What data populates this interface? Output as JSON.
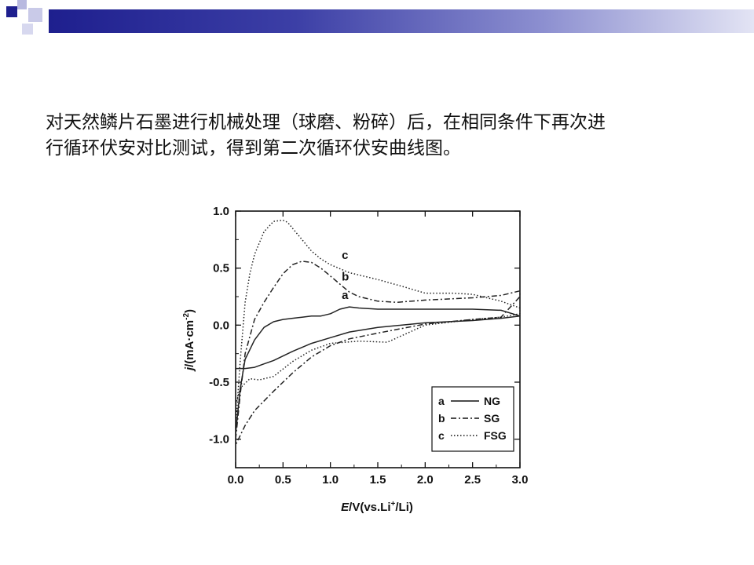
{
  "slide": {
    "text_line1": "对天然鳞片石墨进行机械处理（球磨、粉碎）后，在相同条件下再次进",
    "text_line2": "行循环伏安对比测试，得到第二次循环伏安曲线图。"
  },
  "chart_data": {
    "type": "line",
    "xlabel_prefix": "E",
    "xlabel_rest": "/V(vs.Li",
    "xlabel_sup": "+",
    "xlabel_end": "/Li)",
    "ylabel_prefix": "j",
    "ylabel_rest": "/(mA·cm",
    "ylabel_sup": "-2",
    "ylabel_end": ")",
    "xlim": [
      0.0,
      3.0
    ],
    "ylim": [
      -1.25,
      1.0
    ],
    "x_ticks": [
      "0.0",
      "0.5",
      "1.0",
      "1.5",
      "2.0",
      "2.5",
      "3.0"
    ],
    "y_ticks": [
      "1.0",
      "0.5",
      "0.0",
      "-0.5",
      "-1.0"
    ],
    "legend_position": "bottom-right",
    "series": [
      {
        "name": "NG",
        "key": "a",
        "style": "solid",
        "color": "#222222",
        "forward": [
          [
            0.0,
            -0.95
          ],
          [
            0.05,
            -0.55
          ],
          [
            0.1,
            -0.3
          ],
          [
            0.2,
            -0.13
          ],
          [
            0.3,
            -0.02
          ],
          [
            0.4,
            0.03
          ],
          [
            0.5,
            0.05
          ],
          [
            0.6,
            0.06
          ],
          [
            0.7,
            0.07
          ],
          [
            0.8,
            0.08
          ],
          [
            0.9,
            0.08
          ],
          [
            1.0,
            0.1
          ],
          [
            1.1,
            0.14
          ],
          [
            1.2,
            0.16
          ],
          [
            1.3,
            0.15
          ],
          [
            1.5,
            0.14
          ],
          [
            2.0,
            0.14
          ],
          [
            2.5,
            0.14
          ],
          [
            2.8,
            0.13
          ],
          [
            3.0,
            0.08
          ]
        ],
        "reverse": [
          [
            3.0,
            0.08
          ],
          [
            2.8,
            0.06
          ],
          [
            2.5,
            0.04
          ],
          [
            2.0,
            0.02
          ],
          [
            1.5,
            -0.02
          ],
          [
            1.2,
            -0.06
          ],
          [
            1.0,
            -0.11
          ],
          [
            0.8,
            -0.16
          ],
          [
            0.6,
            -0.23
          ],
          [
            0.4,
            -0.31
          ],
          [
            0.3,
            -0.34
          ],
          [
            0.2,
            -0.37
          ],
          [
            0.1,
            -0.38
          ],
          [
            0.0,
            -0.38
          ]
        ]
      },
      {
        "name": "SG",
        "key": "b",
        "style": "dashdot",
        "color": "#222222",
        "forward": [
          [
            0.0,
            -1.0
          ],
          [
            0.05,
            -0.6
          ],
          [
            0.1,
            -0.25
          ],
          [
            0.2,
            0.05
          ],
          [
            0.3,
            0.2
          ],
          [
            0.4,
            0.33
          ],
          [
            0.5,
            0.45
          ],
          [
            0.6,
            0.53
          ],
          [
            0.7,
            0.56
          ],
          [
            0.8,
            0.55
          ],
          [
            0.9,
            0.5
          ],
          [
            1.0,
            0.43
          ],
          [
            1.1,
            0.36
          ],
          [
            1.2,
            0.29
          ],
          [
            1.3,
            0.25
          ],
          [
            1.5,
            0.21
          ],
          [
            1.7,
            0.2
          ],
          [
            2.0,
            0.22
          ],
          [
            2.5,
            0.24
          ],
          [
            2.8,
            0.26
          ],
          [
            3.0,
            0.3
          ]
        ],
        "reverse": [
          [
            3.0,
            0.25
          ],
          [
            2.8,
            0.07
          ],
          [
            2.5,
            0.05
          ],
          [
            2.0,
            0.01
          ],
          [
            1.5,
            -0.07
          ],
          [
            1.2,
            -0.12
          ],
          [
            1.0,
            -0.18
          ],
          [
            0.8,
            -0.28
          ],
          [
            0.6,
            -0.42
          ],
          [
            0.4,
            -0.58
          ],
          [
            0.2,
            -0.75
          ],
          [
            0.1,
            -0.88
          ],
          [
            0.0,
            -1.05
          ]
        ]
      },
      {
        "name": "FSG",
        "key": "c",
        "style": "dotted",
        "color": "#222222",
        "forward": [
          [
            0.0,
            -0.9
          ],
          [
            0.05,
            -0.3
          ],
          [
            0.1,
            0.2
          ],
          [
            0.15,
            0.45
          ],
          [
            0.2,
            0.62
          ],
          [
            0.3,
            0.82
          ],
          [
            0.4,
            0.91
          ],
          [
            0.5,
            0.92
          ],
          [
            0.55,
            0.9
          ],
          [
            0.6,
            0.85
          ],
          [
            0.7,
            0.75
          ],
          [
            0.8,
            0.65
          ],
          [
            0.9,
            0.58
          ],
          [
            1.0,
            0.53
          ],
          [
            1.2,
            0.46
          ],
          [
            1.5,
            0.4
          ],
          [
            1.8,
            0.33
          ],
          [
            2.0,
            0.28
          ],
          [
            2.3,
            0.28
          ],
          [
            2.5,
            0.27
          ],
          [
            2.8,
            0.21
          ],
          [
            3.0,
            0.15
          ]
        ],
        "reverse": [
          [
            3.0,
            0.1
          ],
          [
            2.8,
            0.07
          ],
          [
            2.5,
            0.05
          ],
          [
            2.0,
            0.0
          ],
          [
            1.6,
            -0.15
          ],
          [
            1.3,
            -0.14
          ],
          [
            1.0,
            -0.16
          ],
          [
            0.8,
            -0.22
          ],
          [
            0.6,
            -0.32
          ],
          [
            0.4,
            -0.45
          ],
          [
            0.25,
            -0.48
          ],
          [
            0.15,
            -0.47
          ],
          [
            0.05,
            -0.55
          ],
          [
            0.0,
            -0.7
          ]
        ]
      }
    ],
    "curve_labels": [
      {
        "text": "c",
        "x": 1.12,
        "y": 0.58
      },
      {
        "text": "b",
        "x": 1.12,
        "y": 0.39
      },
      {
        "text": "a",
        "x": 1.12,
        "y": 0.23
      }
    ]
  }
}
